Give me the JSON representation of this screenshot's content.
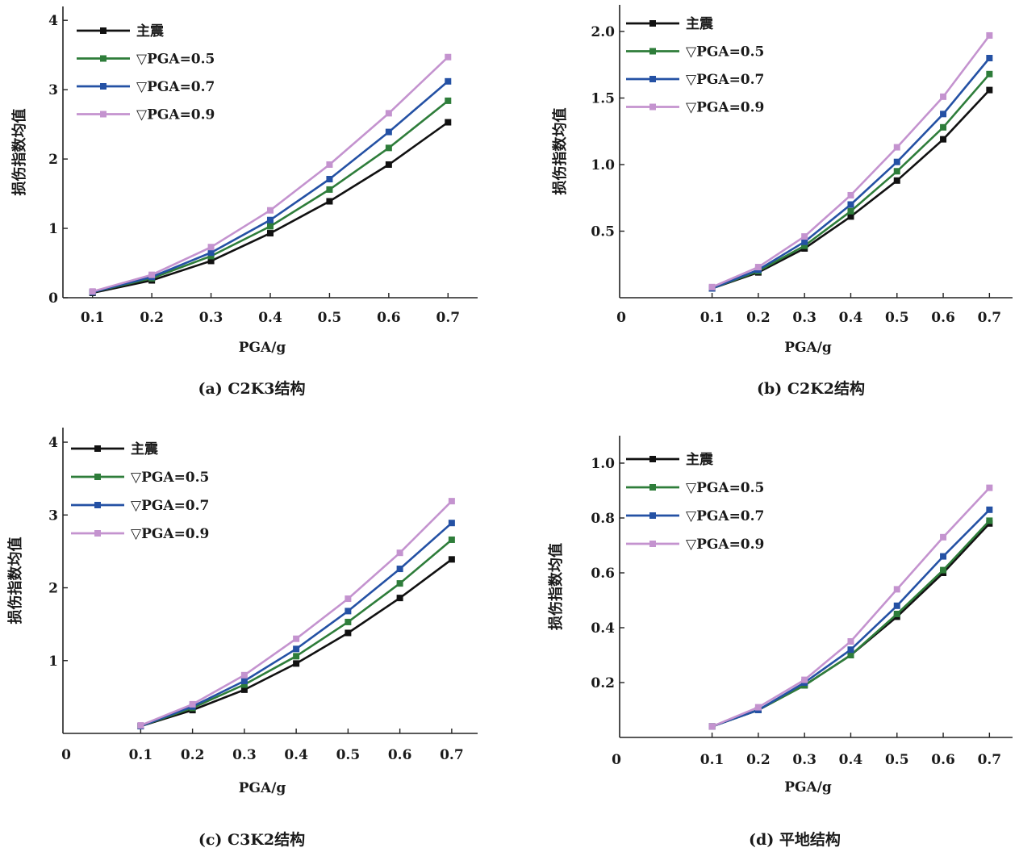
{
  "chart_data": [
    {
      "type": "line",
      "caption": "(a) C2K3结构",
      "xlabel": "PGA/g",
      "ylabel": "损伤指数均值",
      "x": [
        0.1,
        0.2,
        0.3,
        0.4,
        0.5,
        0.6,
        0.7
      ],
      "xlim": [
        0.05,
        0.75
      ],
      "ylim": [
        0,
        4.2
      ],
      "yticks": [
        0,
        1,
        2,
        3,
        4
      ],
      "ytick_labels": [
        "0",
        "1",
        "2",
        "3",
        "4"
      ],
      "series": [
        {
          "name": "主震",
          "color": "#111111",
          "values": [
            0.07,
            0.25,
            0.53,
            0.93,
            1.39,
            1.92,
            2.53
          ]
        },
        {
          "name": "▽PGA=0.5",
          "color": "#2e7d3a",
          "values": [
            0.08,
            0.28,
            0.6,
            1.03,
            1.56,
            2.16,
            2.84
          ]
        },
        {
          "name": "▽PGA=0.7",
          "color": "#2451a4",
          "values": [
            0.08,
            0.3,
            0.65,
            1.12,
            1.71,
            2.39,
            3.12
          ]
        },
        {
          "name": "▽PGA=0.9",
          "color": "#c493cf",
          "values": [
            0.09,
            0.33,
            0.73,
            1.26,
            1.92,
            2.66,
            3.47
          ]
        }
      ]
    },
    {
      "type": "line",
      "caption": "(b) C2K2结构",
      "xlabel": "PGA/g",
      "ylabel": "损伤指数均值",
      "x": [
        0.1,
        0.2,
        0.3,
        0.4,
        0.5,
        0.6,
        0.7
      ],
      "xlim": [
        -0.1,
        0.75
      ],
      "origin_label": "0",
      "ylim": [
        0,
        2.2
      ],
      "yticks": [
        0.5,
        1.0,
        1.5,
        2.0
      ],
      "ytick_labels": [
        "0.5",
        "1.0",
        "1.5",
        "2.0"
      ],
      "series": [
        {
          "name": "主震",
          "color": "#111111",
          "values": [
            0.07,
            0.19,
            0.37,
            0.61,
            0.88,
            1.19,
            1.56
          ]
        },
        {
          "name": "▽PGA=0.5",
          "color": "#2e7d3a",
          "values": [
            0.07,
            0.2,
            0.39,
            0.65,
            0.95,
            1.28,
            1.68
          ]
        },
        {
          "name": "▽PGA=0.7",
          "color": "#2451a4",
          "values": [
            0.07,
            0.21,
            0.42,
            0.7,
            1.02,
            1.38,
            1.8
          ]
        },
        {
          "name": "▽PGA=0.9",
          "color": "#c493cf",
          "values": [
            0.08,
            0.23,
            0.46,
            0.77,
            1.13,
            1.51,
            1.97
          ]
        }
      ]
    },
    {
      "type": "line",
      "caption": "(c) C3K2结构",
      "xlabel": "PGA/g",
      "ylabel": "损伤指数均值",
      "x": [
        0.1,
        0.2,
        0.3,
        0.4,
        0.5,
        0.6,
        0.7
      ],
      "xlim": [
        -0.05,
        0.75
      ],
      "origin_label": "0",
      "ylim": [
        0,
        4.2
      ],
      "yticks": [
        1,
        2,
        3,
        4
      ],
      "ytick_labels": [
        "1",
        "2",
        "3",
        "4"
      ],
      "series": [
        {
          "name": "主震",
          "color": "#111111",
          "values": [
            0.1,
            0.32,
            0.6,
            0.96,
            1.38,
            1.86,
            2.39
          ]
        },
        {
          "name": "▽PGA=0.5",
          "color": "#2e7d3a",
          "values": [
            0.1,
            0.35,
            0.67,
            1.06,
            1.53,
            2.06,
            2.66
          ]
        },
        {
          "name": "▽PGA=0.7",
          "color": "#2451a4",
          "values": [
            0.1,
            0.37,
            0.72,
            1.16,
            1.68,
            2.26,
            2.89
          ]
        },
        {
          "name": "▽PGA=0.9",
          "color": "#c493cf",
          "values": [
            0.11,
            0.4,
            0.8,
            1.3,
            1.85,
            2.48,
            3.19
          ]
        }
      ]
    },
    {
      "type": "line",
      "caption": "(d) 平地结构",
      "xlabel": "PGA/g",
      "ylabel": "损伤指数均值",
      "x": [
        0.1,
        0.2,
        0.3,
        0.4,
        0.5,
        0.6,
        0.7
      ],
      "xlim": [
        -0.1,
        0.75
      ],
      "origin_label": "0",
      "ylim": [
        0,
        1.1
      ],
      "yticks": [
        0.2,
        0.4,
        0.6,
        0.8,
        1.0
      ],
      "ytick_labels": [
        "0.2",
        "0.4",
        "0.6",
        "0.8",
        "1.0"
      ],
      "series": [
        {
          "name": "主震",
          "color": "#111111",
          "values": [
            0.04,
            0.1,
            0.19,
            0.3,
            0.44,
            0.6,
            0.78
          ]
        },
        {
          "name": "▽PGA=0.5",
          "color": "#2e7d3a",
          "values": [
            0.04,
            0.1,
            0.19,
            0.3,
            0.45,
            0.61,
            0.79
          ]
        },
        {
          "name": "▽PGA=0.7",
          "color": "#2451a4",
          "values": [
            0.04,
            0.1,
            0.2,
            0.32,
            0.48,
            0.66,
            0.83
          ]
        },
        {
          "name": "▽PGA=0.9",
          "color": "#c493cf",
          "values": [
            0.04,
            0.11,
            0.21,
            0.35,
            0.54,
            0.73,
            0.91
          ]
        }
      ]
    }
  ]
}
